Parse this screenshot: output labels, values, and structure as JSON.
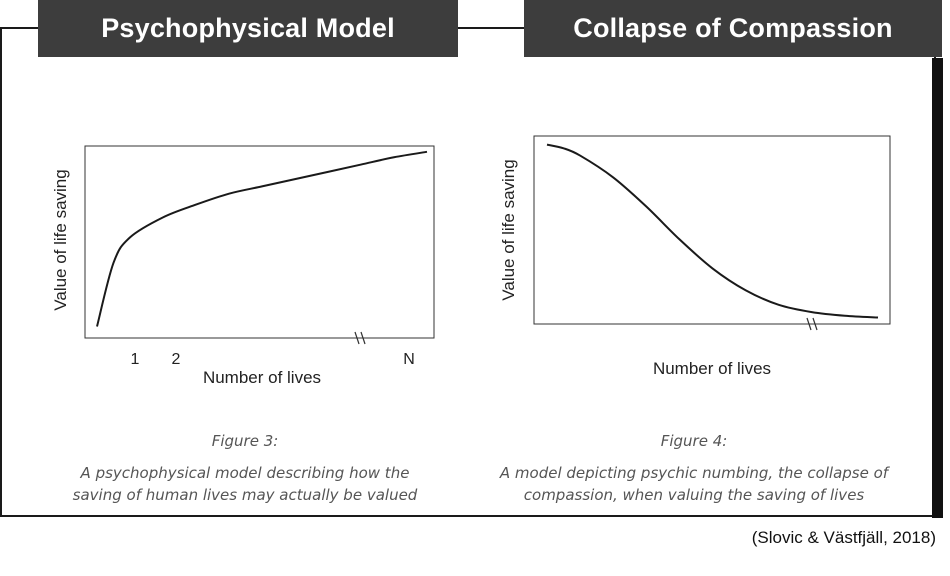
{
  "headers": {
    "left": "Psychophysical Model",
    "right": "Collapse of Compassion"
  },
  "chart_data": [
    {
      "type": "line",
      "ylabel": "Value of life saving",
      "xlabel": "Number of lives",
      "x_tick_labels": [
        "1",
        "2",
        "N"
      ],
      "axis_break": "//",
      "shape": "concave increasing (logarithmic)",
      "x": [
        0,
        0.05,
        0.1,
        0.2,
        0.3,
        0.4,
        0.5,
        0.6,
        0.7,
        0.8,
        0.9,
        1.0
      ],
      "y": [
        0.03,
        0.38,
        0.52,
        0.63,
        0.7,
        0.76,
        0.8,
        0.84,
        0.88,
        0.92,
        0.96,
        0.99
      ],
      "ylim": [
        0,
        1
      ],
      "xlim": [
        0,
        1
      ],
      "caption_title": "Figure 3:",
      "caption_lines": [
        "A psychophysical model describing how the",
        "saving of human lives may actually be valued"
      ]
    },
    {
      "type": "line",
      "ylabel": "Value of life saving",
      "xlabel": "Number of lives",
      "axis_break": "//",
      "shape": "decreasing sigmoid",
      "x": [
        0,
        0.05,
        0.1,
        0.2,
        0.3,
        0.4,
        0.5,
        0.6,
        0.7,
        0.8,
        0.9,
        1.0
      ],
      "y": [
        0.98,
        0.96,
        0.92,
        0.8,
        0.64,
        0.46,
        0.3,
        0.18,
        0.1,
        0.06,
        0.04,
        0.03
      ],
      "ylim": [
        0,
        1
      ],
      "xlim": [
        0,
        1
      ],
      "caption_title": "Figure 4:",
      "caption_lines": [
        "A model depicting psychic numbing, the collapse of",
        "compassion, when valuing the saving of lives"
      ]
    }
  ],
  "citation": "(Slovic & Västfjäll, 2018)"
}
